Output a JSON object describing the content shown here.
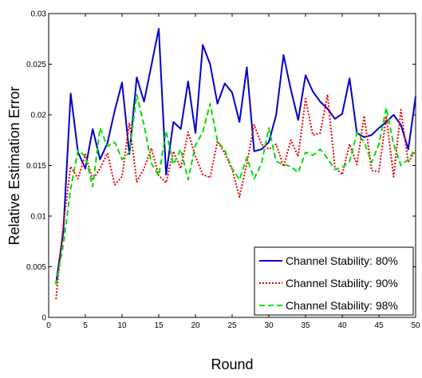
{
  "chart_data": {
    "type": "line",
    "title": "",
    "xlabel": "Round",
    "ylabel": "Relative Estimation Error",
    "xlim": [
      0,
      50
    ],
    "ylim": [
      0,
      0.03
    ],
    "x_ticks": [
      0,
      5,
      10,
      15,
      20,
      25,
      30,
      35,
      40,
      45,
      50
    ],
    "y_ticks": [
      0,
      0.005,
      0.01,
      0.015,
      0.02,
      0.025,
      0.03
    ],
    "x_tick_labels": [
      "0",
      "5",
      "10",
      "15",
      "20",
      "25",
      "30",
      "35",
      "40",
      "45",
      "50"
    ],
    "y_tick_labels": [
      "0",
      "0.005",
      "0.01",
      "0.015",
      "0.02",
      "0.025",
      "0.03"
    ],
    "grid": false,
    "legend_position": "bottom-right",
    "x": [
      1,
      2,
      3,
      4,
      5,
      6,
      7,
      8,
      9,
      10,
      11,
      12,
      13,
      14,
      15,
      16,
      17,
      18,
      19,
      20,
      21,
      22,
      23,
      24,
      25,
      26,
      27,
      28,
      29,
      30,
      31,
      32,
      33,
      34,
      35,
      36,
      37,
      38,
      39,
      40,
      41,
      42,
      43,
      44,
      45,
      46,
      47,
      48,
      49,
      50
    ],
    "series": [
      {
        "name": "Channel Stability: 80%",
        "color": "#0000cc",
        "dash": "solid",
        "values": [
          0.0033,
          0.0085,
          0.0221,
          0.0163,
          0.0147,
          0.0186,
          0.0156,
          0.0172,
          0.0204,
          0.0232,
          0.0161,
          0.0237,
          0.0213,
          0.0249,
          0.0285,
          0.0141,
          0.0193,
          0.0186,
          0.0233,
          0.0182,
          0.0269,
          0.025,
          0.0211,
          0.0231,
          0.0222,
          0.0193,
          0.0247,
          0.0164,
          0.0166,
          0.0173,
          0.02,
          0.0259,
          0.0225,
          0.0195,
          0.0239,
          0.0223,
          0.0213,
          0.0206,
          0.0196,
          0.0201,
          0.0236,
          0.0182,
          0.0178,
          0.018,
          0.0187,
          0.0193,
          0.02,
          0.019,
          0.0166,
          0.0218
        ]
      },
      {
        "name": "Channel Stability: 90%",
        "color": "#ee0000",
        "dash": "dotted",
        "values": [
          0.0018,
          0.0092,
          0.0149,
          0.0137,
          0.0161,
          0.0136,
          0.0147,
          0.0162,
          0.0131,
          0.0139,
          0.0192,
          0.0134,
          0.0147,
          0.0167,
          0.014,
          0.0133,
          0.0164,
          0.0147,
          0.0183,
          0.0159,
          0.0141,
          0.0138,
          0.0174,
          0.0162,
          0.0146,
          0.0119,
          0.0152,
          0.019,
          0.0171,
          0.0166,
          0.0171,
          0.0149,
          0.0175,
          0.0159,
          0.0216,
          0.018,
          0.0182,
          0.022,
          0.0148,
          0.0141,
          0.0171,
          0.0151,
          0.0199,
          0.0145,
          0.0144,
          0.0199,
          0.0139,
          0.0205,
          0.0153,
          0.0165
        ]
      },
      {
        "name": "Channel Stability: 98%",
        "color": "#00dd00",
        "dash": "dashed",
        "values": [
          0.0032,
          0.0072,
          0.0127,
          0.0165,
          0.0159,
          0.0129,
          0.0187,
          0.0169,
          0.0173,
          0.0156,
          0.0163,
          0.022,
          0.019,
          0.0152,
          0.014,
          0.0184,
          0.0151,
          0.0166,
          0.0136,
          0.017,
          0.0183,
          0.0211,
          0.0174,
          0.0165,
          0.0147,
          0.0136,
          0.0158,
          0.0137,
          0.0152,
          0.0187,
          0.0154,
          0.0151,
          0.0149,
          0.0143,
          0.0163,
          0.016,
          0.0166,
          0.0157,
          0.0146,
          0.0148,
          0.0154,
          0.0182,
          0.0173,
          0.0153,
          0.0171,
          0.0207,
          0.0171,
          0.015,
          0.0156,
          0.0167
        ]
      }
    ]
  }
}
